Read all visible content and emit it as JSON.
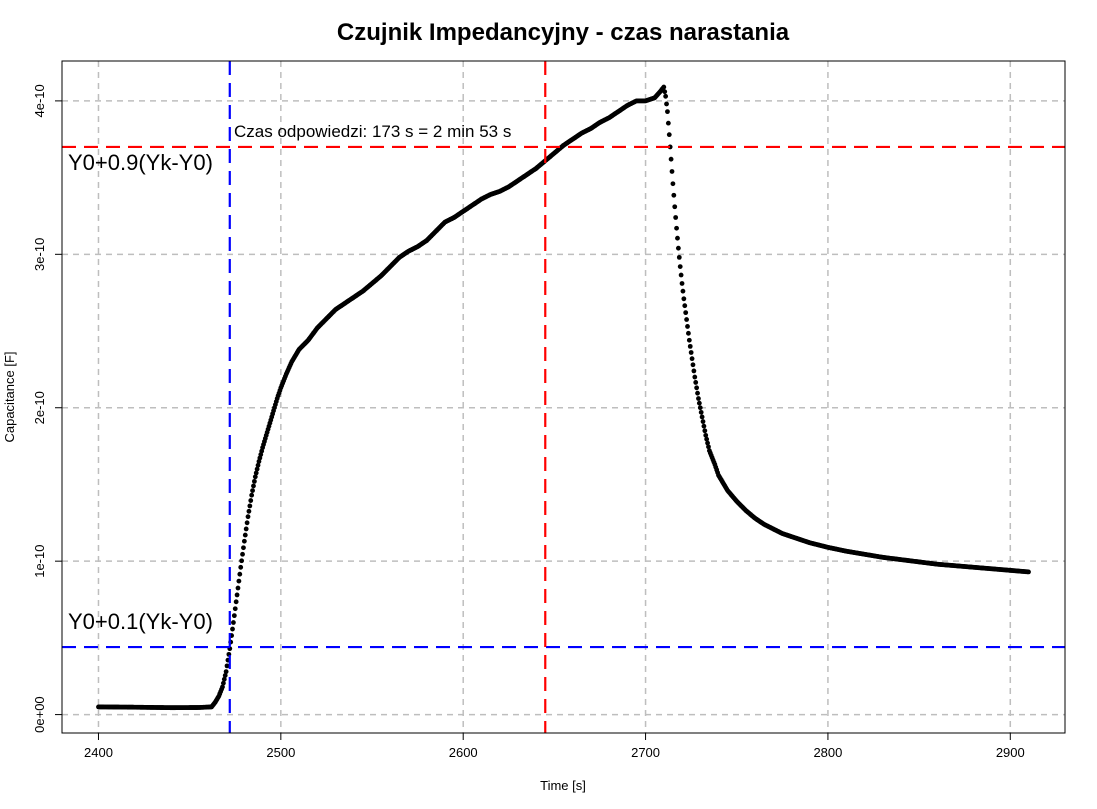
{
  "chart_data": {
    "type": "scatter",
    "title": "Czujnik Impedancyjny - czas narastania",
    "xlabel": "Time [s]",
    "ylabel": "Capacitance [F]",
    "xlim": [
      2380,
      2930
    ],
    "ylim": [
      -1.2e-11,
      4.26e-10
    ],
    "x_ticks": [
      2400,
      2500,
      2600,
      2700,
      2800,
      2900
    ],
    "x_tick_labels": [
      "2400",
      "2500",
      "2600",
      "2700",
      "2800",
      "2900"
    ],
    "y_ticks": [
      0,
      1e-10,
      2e-10,
      3e-10,
      4e-10
    ],
    "y_tick_labels": [
      "0e+00",
      "1e-10",
      "2e-10",
      "3e-10",
      "4e-10"
    ],
    "grid": true,
    "series": [
      {
        "color": "#000000",
        "marker": "filled-circle",
        "x": [
          2400,
          2420,
          2440,
          2455,
          2462,
          2464,
          2466,
          2468,
          2470,
          2472,
          2474,
          2476,
          2478,
          2480,
          2482,
          2484,
          2486,
          2488,
          2490,
          2492,
          2494,
          2496,
          2498,
          2500,
          2503,
          2506,
          2510,
          2515,
          2520,
          2525,
          2530,
          2535,
          2540,
          2545,
          2550,
          2555,
          2560,
          2565,
          2570,
          2575,
          2580,
          2585,
          2590,
          2595,
          2600,
          2605,
          2610,
          2615,
          2620,
          2625,
          2630,
          2635,
          2640,
          2645,
          2650,
          2655,
          2660,
          2665,
          2670,
          2675,
          2680,
          2685,
          2690,
          2695,
          2700,
          2705,
          2708,
          2710,
          2711,
          2712,
          2713,
          2714,
          2715,
          2716,
          2717,
          2718,
          2719,
          2720,
          2721,
          2722,
          2723,
          2724,
          2725,
          2726,
          2727,
          2728,
          2729,
          2730,
          2731,
          2732,
          2733,
          2734,
          2735,
          2736,
          2737,
          2738,
          2740,
          2745,
          2750,
          2755,
          2760,
          2765,
          2770,
          2775,
          2780,
          2790,
          2800,
          2810,
          2820,
          2830,
          2840,
          2850,
          2860,
          2870,
          2880,
          2890,
          2900,
          2910
        ],
        "y": [
          5e-12,
          4.8e-12,
          4.5e-12,
          4.6e-12,
          5e-12,
          8e-12,
          1.2e-11,
          1.8e-11,
          2.8e-11,
          4.3e-11,
          6e-11,
          7.8e-11,
          9.6e-11,
          1.13e-10,
          1.29e-10,
          1.43e-10,
          1.55e-10,
          1.65e-10,
          1.74e-10,
          1.82e-10,
          1.9e-10,
          1.98e-10,
          2.06e-10,
          2.13e-10,
          2.22e-10,
          2.3e-10,
          2.38e-10,
          2.44e-10,
          2.52e-10,
          2.58e-10,
          2.64e-10,
          2.68e-10,
          2.72e-10,
          2.76e-10,
          2.81e-10,
          2.86e-10,
          2.92e-10,
          2.98e-10,
          3.02e-10,
          3.05e-10,
          3.09e-10,
          3.15e-10,
          3.21e-10,
          3.24e-10,
          3.28e-10,
          3.32e-10,
          3.36e-10,
          3.39e-10,
          3.41e-10,
          3.44e-10,
          3.48e-10,
          3.52e-10,
          3.56e-10,
          3.61e-10,
          3.66e-10,
          3.71e-10,
          3.75e-10,
          3.79e-10,
          3.82e-10,
          3.86e-10,
          3.89e-10,
          3.93e-10,
          3.97e-10,
          4e-10,
          4e-10,
          4.02e-10,
          4.06e-10,
          4.09e-10,
          4.03e-10,
          3.93e-10,
          3.78e-10,
          3.62e-10,
          3.46e-10,
          3.31e-10,
          3.17e-10,
          3.04e-10,
          2.92e-10,
          2.81e-10,
          2.71e-10,
          2.62e-10,
          2.53e-10,
          2.44e-10,
          2.36e-10,
          2.28e-10,
          2.2e-10,
          2.13e-10,
          2.06e-10,
          2e-10,
          1.94e-10,
          1.88e-10,
          1.82e-10,
          1.77e-10,
          1.72e-10,
          1.69e-10,
          1.66e-10,
          1.63e-10,
          1.56e-10,
          1.46e-10,
          1.39e-10,
          1.33e-10,
          1.28e-10,
          1.24e-10,
          1.21e-10,
          1.18e-10,
          1.16e-10,
          1.12e-10,
          1.09e-10,
          1.065e-10,
          1.045e-10,
          1.025e-10,
          1.01e-10,
          9.95e-11,
          9.8e-11,
          9.7e-11,
          9.6e-11,
          9.5e-11,
          9.4e-11,
          9.3e-11
        ]
      }
    ],
    "hlines": [
      {
        "y": 3.7e-10,
        "color": "#ff0000",
        "style": "dashed"
      },
      {
        "y": 4.4e-11,
        "color": "#0000ff",
        "style": "dashed"
      }
    ],
    "vlines": [
      {
        "x": 2472,
        "color": "#0000ff",
        "style": "dashed"
      },
      {
        "x": 2645,
        "color": "#ff0000",
        "style": "dashed"
      }
    ],
    "annotations": [
      {
        "text": "Czas odpowiedzi: 173 s = 2 min 53 s"
      },
      {
        "text": "Y0+0.9(Yk-Y0)"
      },
      {
        "text": "Y0+0.1(Yk-Y0)"
      }
    ]
  }
}
